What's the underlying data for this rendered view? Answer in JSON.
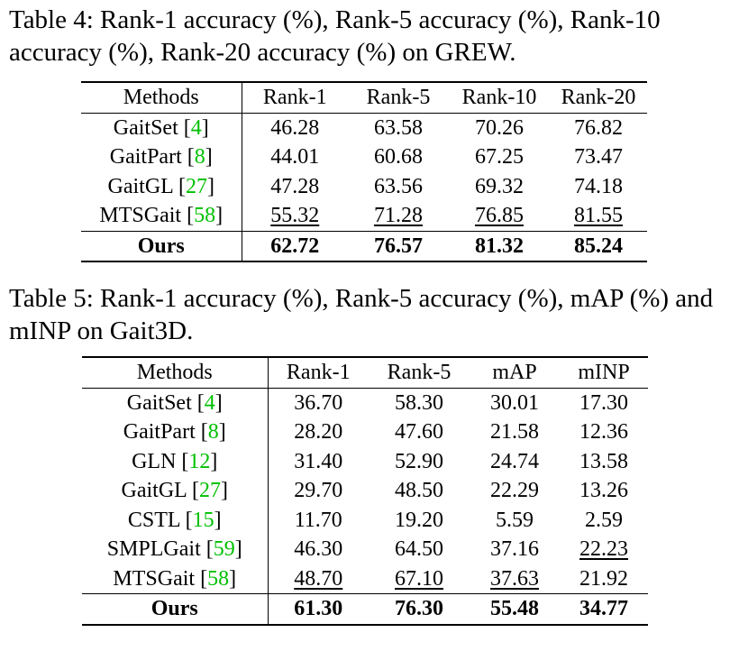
{
  "table4": {
    "caption": "Table 4: Rank-1 accuracy (%), Rank-5 accuracy (%), Rank-10 accuracy (%), Rank-20 accuracy (%) on GREW.",
    "headers": [
      "Methods",
      "Rank-1",
      "Rank-5",
      "Rank-10",
      "Rank-20"
    ],
    "rows": [
      {
        "method": "GaitSet",
        "ref": "4",
        "values": [
          "46.28",
          "63.58",
          "70.26",
          "76.82"
        ],
        "underline": [
          false,
          false,
          false,
          false
        ]
      },
      {
        "method": "GaitPart",
        "ref": "8",
        "values": [
          "44.01",
          "60.68",
          "67.25",
          "73.47"
        ],
        "underline": [
          false,
          false,
          false,
          false
        ]
      },
      {
        "method": "GaitGL",
        "ref": "27",
        "values": [
          "47.28",
          "63.56",
          "69.32",
          "74.18"
        ],
        "underline": [
          false,
          false,
          false,
          false
        ]
      },
      {
        "method": "MTSGait",
        "ref": "58",
        "values": [
          "55.32",
          "71.28",
          "76.85",
          "81.55"
        ],
        "underline": [
          true,
          true,
          true,
          true
        ]
      }
    ],
    "ours": {
      "method": "Ours",
      "values": [
        "62.72",
        "76.57",
        "81.32",
        "85.24"
      ]
    }
  },
  "table5": {
    "caption": "Table 5: Rank-1 accuracy (%), Rank-5 accuracy (%), mAP (%) and mINP on Gait3D.",
    "headers": [
      "Methods",
      "Rank-1",
      "Rank-5",
      "mAP",
      "mINP"
    ],
    "rows": [
      {
        "method": "GaitSet",
        "ref": "4",
        "values": [
          "36.70",
          "58.30",
          "30.01",
          "17.30"
        ],
        "underline": [
          false,
          false,
          false,
          false
        ]
      },
      {
        "method": "GaitPart",
        "ref": "8",
        "values": [
          "28.20",
          "47.60",
          "21.58",
          "12.36"
        ],
        "underline": [
          false,
          false,
          false,
          false
        ]
      },
      {
        "method": "GLN",
        "ref": "12",
        "values": [
          "31.40",
          "52.90",
          "24.74",
          "13.58"
        ],
        "underline": [
          false,
          false,
          false,
          false
        ]
      },
      {
        "method": "GaitGL",
        "ref": "27",
        "values": [
          "29.70",
          "48.50",
          "22.29",
          "13.26"
        ],
        "underline": [
          false,
          false,
          false,
          false
        ]
      },
      {
        "method": "CSTL",
        "ref": "15",
        "values": [
          "11.70",
          "19.20",
          "5.59",
          "2.59"
        ],
        "underline": [
          false,
          false,
          false,
          false
        ]
      },
      {
        "method": "SMPLGait",
        "ref": "59",
        "values": [
          "46.30",
          "64.50",
          "37.16",
          "22.23"
        ],
        "underline": [
          false,
          false,
          false,
          true
        ]
      },
      {
        "method": "MTSGait",
        "ref": "58",
        "values": [
          "48.70",
          "67.10",
          "37.63",
          "21.92"
        ],
        "underline": [
          true,
          true,
          true,
          false
        ]
      }
    ],
    "ours": {
      "method": "Ours",
      "values": [
        "61.30",
        "76.30",
        "55.48",
        "34.77"
      ]
    }
  }
}
